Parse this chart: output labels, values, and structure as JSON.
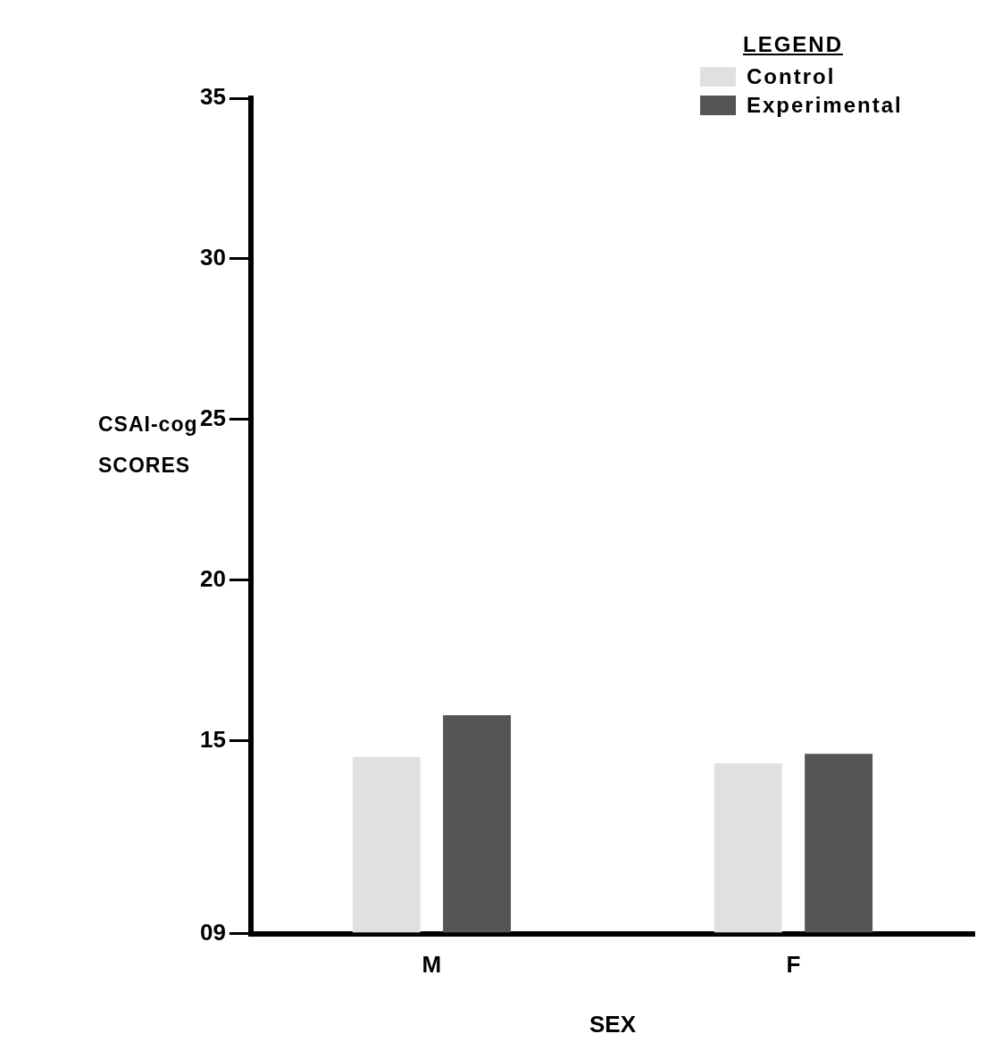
{
  "chart_data": {
    "type": "bar",
    "xlabel": "SEX",
    "ylabel": "CSAI-cog SCORES",
    "legend_title": "LEGEND",
    "legend": "top right",
    "grid": false,
    "categories": [
      "M",
      "F"
    ],
    "series": [
      {
        "name": "Control",
        "color": "#e0e0e0",
        "values": [
          14.5,
          14.3
        ]
      },
      {
        "name": "Experimental",
        "color": "#555555",
        "values": [
          15.8,
          14.6
        ]
      }
    ],
    "ylim": [
      9,
      35
    ],
    "yticks": [
      {
        "value": 9,
        "label": "09"
      },
      15,
      20,
      25,
      30,
      35
    ]
  }
}
